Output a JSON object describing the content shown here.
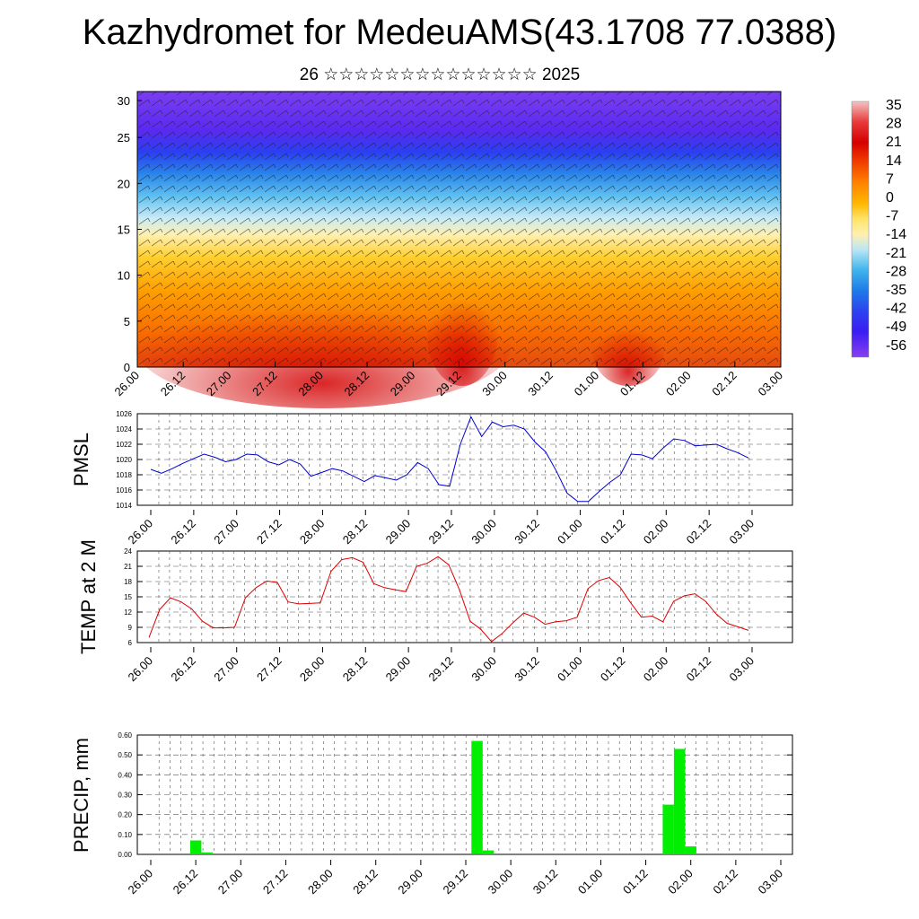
{
  "title": "Kazhydromet for MedeuAMS(43.1708 77.0388)",
  "subtitle": "26 ☆☆☆☆☆☆☆☆☆☆☆☆☆☆ 2025",
  "x_tick_labels": [
    "26.00",
    "26.12",
    "27.00",
    "27.12",
    "28.00",
    "28.12",
    "29.00",
    "29.12",
    "30.00",
    "30.12",
    "01.00",
    "01.12",
    "02.00",
    "02.12",
    "03.00"
  ],
  "colorbar": {
    "labels": [
      "35",
      "28",
      "21",
      "14",
      "7",
      "0",
      "-7",
      "-14",
      "-21",
      "-28",
      "-35",
      "-42",
      "-49",
      "-56"
    ],
    "colors": [
      "#f4b8b8",
      "#e83a3a",
      "#d40000",
      "#f24000",
      "#ff8400",
      "#ffb800",
      "#ffe46a",
      "#fff0b0",
      "#b9e6f5",
      "#3fb4ec",
      "#1e7ae8",
      "#2c43ef",
      "#3a1ef2",
      "#7d3ef0"
    ]
  },
  "chart_data": [
    {
      "type": "heatmap",
      "name": "upper-air temperature and wind",
      "xlabel": "",
      "ylabel": "",
      "ylim": [
        0,
        30
      ],
      "y_ticks": [
        "0",
        "5",
        "10",
        "15",
        "20",
        "25",
        "30"
      ],
      "x_categories": [
        "26.00",
        "26.12",
        "27.00",
        "27.12",
        "28.00",
        "28.12",
        "29.00",
        "29.12",
        "30.00",
        "30.12",
        "01.00",
        "01.12",
        "02.00",
        "02.12",
        "03.00"
      ]
    },
    {
      "type": "line",
      "ylabel": "PMSL",
      "ylim": [
        1014,
        1026
      ],
      "y_ticks": [
        "1014",
        "1016",
        "1018",
        "1020",
        "1022",
        "1024",
        "1026"
      ],
      "color": "#0000cc",
      "series": [
        {
          "values": [
            1018.7,
            1018.2,
            1018.8,
            1019.5,
            1020.1,
            1020.7,
            1020.3,
            1019.7,
            1020.0,
            1020.7,
            1020.6,
            1019.7,
            1019.3,
            1020.0,
            1019.4,
            1017.8,
            1018.3,
            1018.8,
            1018.5,
            1017.8,
            1017.1,
            1017.9,
            1017.6,
            1017.3,
            1018.0,
            1019.6,
            1018.8,
            1016.7,
            1016.5,
            1022.0,
            1025.6,
            1023.0,
            1024.9,
            1024.3,
            1024.5,
            1024.0,
            1022.3,
            1021.0,
            1018.5,
            1015.6,
            1014.5,
            1014.5,
            1015.8,
            1017.0,
            1018.0,
            1020.7,
            1020.6,
            1020.1,
            1021.5,
            1022.7,
            1022.5,
            1021.8,
            1021.9,
            1022.0,
            1021.4,
            1020.9,
            1020.2
          ]
        }
      ]
    },
    {
      "type": "line",
      "ylabel": "TEMP at 2 M",
      "ylim": [
        6,
        24
      ],
      "y_ticks": [
        "6",
        "9",
        "12",
        "15",
        "18",
        "21",
        "24"
      ],
      "color": "#dd0000",
      "series": [
        {
          "values": [
            7.0,
            12.5,
            14.8,
            14.0,
            12.6,
            10.2,
            8.9,
            8.9,
            9.0,
            14.8,
            16.8,
            18.1,
            17.8,
            14.0,
            13.6,
            13.7,
            13.8,
            20.0,
            22.3,
            22.7,
            21.8,
            17.6,
            16.8,
            16.4,
            16.0,
            21.0,
            21.6,
            22.9,
            21.3,
            16.4,
            10.2,
            8.6,
            6.2,
            7.8,
            9.9,
            11.8,
            11.0,
            9.6,
            10.1,
            10.3,
            11.0,
            16.6,
            18.2,
            18.8,
            16.9,
            13.8,
            11.0,
            11.2,
            10.1,
            14.1,
            15.2,
            15.6,
            14.1,
            11.6,
            9.8,
            9.1,
            8.4
          ]
        }
      ]
    },
    {
      "type": "bar",
      "ylabel": "PRECIP, mm",
      "ylim": [
        0,
        0.6
      ],
      "y_ticks": [
        "0.00",
        "0.10",
        "0.20",
        "0.30",
        "0.40",
        "0.50",
        "0.60"
      ],
      "color": "#00ee00",
      "values": [
        0,
        0,
        0,
        0,
        0.07,
        0.01,
        0,
        0,
        0,
        0,
        0,
        0,
        0,
        0,
        0,
        0,
        0,
        0,
        0,
        0,
        0,
        0,
        0,
        0,
        0,
        0,
        0,
        0,
        0,
        0.57,
        0.02,
        0,
        0,
        0,
        0,
        0,
        0,
        0,
        0,
        0,
        0,
        0,
        0,
        0,
        0,
        0,
        0.25,
        0.53,
        0.04,
        0,
        0,
        0,
        0,
        0,
        0,
        0,
        0
      ]
    }
  ]
}
